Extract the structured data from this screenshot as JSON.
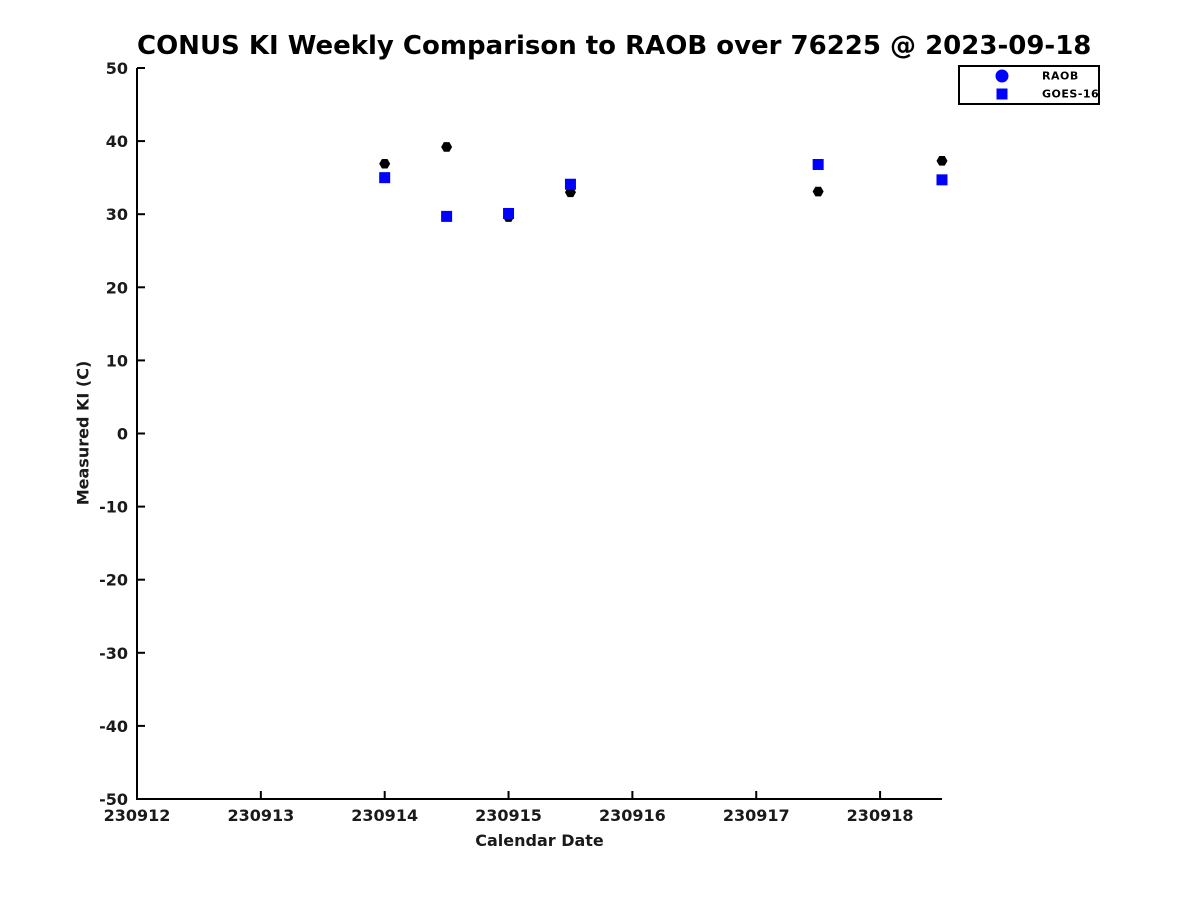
{
  "chart_data": {
    "type": "scatter",
    "title": "CONUS KI Weekly Comparison to RAOB over 76225 @ 2023-09-18",
    "xlabel": "Calendar Date",
    "ylabel": "Measured KI (C)",
    "xlim": [
      230912,
      230918.5
    ],
    "ylim": [
      -50,
      50
    ],
    "x_ticks": [
      230912,
      230913,
      230914,
      230915,
      230916,
      230917,
      230918
    ],
    "y_ticks": [
      -50,
      -40,
      -30,
      -20,
      -10,
      0,
      10,
      20,
      30,
      40,
      50
    ],
    "grid": false,
    "legend_position": "top-right",
    "axis_color": "#000000",
    "tick_label_color": "#1a1a1a",
    "series": [
      {
        "name": "RAOB",
        "marker": "hexagon",
        "color": "#000000",
        "legend_marker": "circle",
        "legend_color": "#0000ff",
        "points": [
          {
            "x": 230914.0,
            "y": 36.9
          },
          {
            "x": 230914.5,
            "y": 39.2
          },
          {
            "x": 230915.0,
            "y": 29.6
          },
          {
            "x": 230915.5,
            "y": 33.0
          },
          {
            "x": 230917.5,
            "y": 33.1
          },
          {
            "x": 230918.5,
            "y": 37.3
          }
        ]
      },
      {
        "name": "GOES-16",
        "marker": "square",
        "color": "#0000ff",
        "legend_marker": "square",
        "legend_color": "#0000ff",
        "points": [
          {
            "x": 230914.0,
            "y": 35.0
          },
          {
            "x": 230914.5,
            "y": 29.7
          },
          {
            "x": 230915.0,
            "y": 30.1
          },
          {
            "x": 230915.5,
            "y": 34.1
          },
          {
            "x": 230917.5,
            "y": 36.8
          },
          {
            "x": 230918.5,
            "y": 34.7
          }
        ]
      }
    ]
  }
}
